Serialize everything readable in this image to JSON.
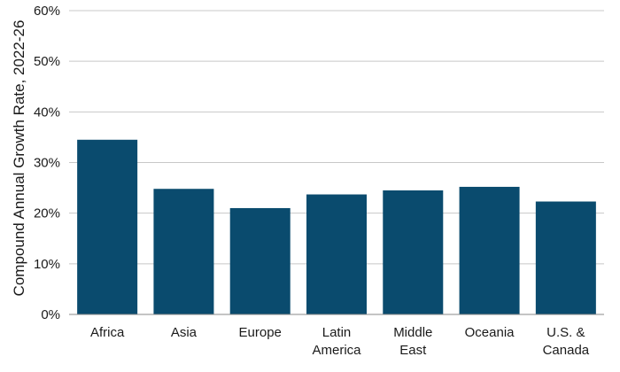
{
  "chart_data": {
    "type": "bar",
    "title": "",
    "xlabel": "",
    "ylabel": "Compound Annual Growth Rate, 2022-26",
    "categories": [
      [
        "Africa"
      ],
      [
        "Asia"
      ],
      [
        "Europe"
      ],
      [
        "Latin",
        "America"
      ],
      [
        "Middle",
        "East"
      ],
      [
        "Oceania"
      ],
      [
        "U.S. &",
        "Canada"
      ]
    ],
    "values": [
      34.5,
      24.8,
      21.0,
      23.7,
      24.5,
      25.2,
      22.3
    ],
    "ylim": [
      0,
      60
    ],
    "yticks": [
      0,
      10,
      20,
      30,
      40,
      50,
      60
    ],
    "ytick_labels": [
      "0%",
      "10%",
      "20%",
      "30%",
      "40%",
      "50%",
      "60%"
    ],
    "grid": true,
    "legend": "none",
    "colors": {
      "bar": "#0a4b6e",
      "grid": "#c8c8c8",
      "axis": "#888888"
    }
  }
}
